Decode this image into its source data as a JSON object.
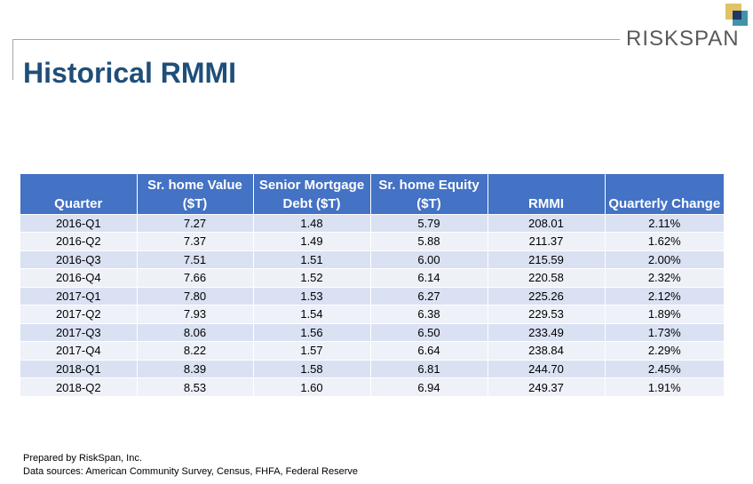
{
  "brand": {
    "name": "RISKSPAN",
    "colors": {
      "navy": "#1f3864",
      "gold": "#c9a227",
      "teal": "#2e86a0"
    }
  },
  "page": {
    "title": "Historical RMMI"
  },
  "colors": {
    "header_bg": "#4472c4",
    "row_odd": "#d9e1f2",
    "row_even": "#eef1f8",
    "title": "#1f4e79"
  },
  "table": {
    "headers": [
      [
        "",
        "Quarter"
      ],
      [
        "Sr. home Value",
        "($T)"
      ],
      [
        "Senior Mortgage",
        "Debt ($T)"
      ],
      [
        "Sr. home Equity",
        "($T)"
      ],
      [
        "",
        "RMMI"
      ],
      [
        "",
        "Quarterly Change"
      ]
    ],
    "rows": [
      [
        "2016-Q1",
        "7.27",
        "1.48",
        "5.79",
        "208.01",
        "2.11%"
      ],
      [
        "2016-Q2",
        "7.37",
        "1.49",
        "5.88",
        "211.37",
        "1.62%"
      ],
      [
        "2016-Q3",
        "7.51",
        "1.51",
        "6.00",
        "215.59",
        "2.00%"
      ],
      [
        "2016-Q4",
        "7.66",
        "1.52",
        "6.14",
        "220.58",
        "2.32%"
      ],
      [
        "2017-Q1",
        "7.80",
        "1.53",
        "6.27",
        "225.26",
        "2.12%"
      ],
      [
        "2017-Q2",
        "7.93",
        "1.54",
        "6.38",
        "229.53",
        "1.89%"
      ],
      [
        "2017-Q3",
        "8.06",
        "1.56",
        "6.50",
        "233.49",
        "1.73%"
      ],
      [
        "2017-Q4",
        "8.22",
        "1.57",
        "6.64",
        "238.84",
        "2.29%"
      ],
      [
        "2018-Q1",
        "8.39",
        "1.58",
        "6.81",
        "244.70",
        "2.45%"
      ],
      [
        "2018-Q2",
        "8.53",
        "1.60",
        "6.94",
        "249.37",
        "1.91%"
      ]
    ]
  },
  "footer": {
    "prepared_by": "Prepared by RiskSpan, Inc.",
    "sources": "Data sources: American Community Survey, Census, FHFA, Federal Reserve"
  }
}
